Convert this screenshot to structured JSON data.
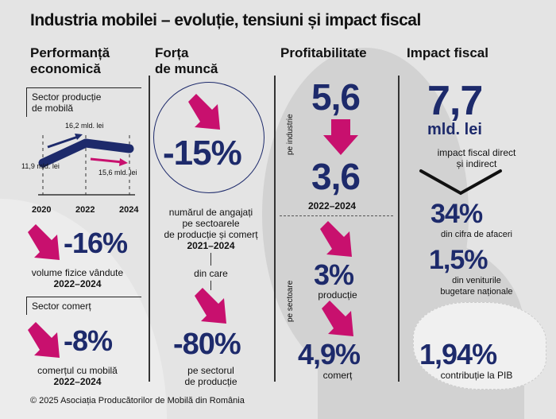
{
  "title": "Industria mobilei – evoluție, tensiuni și impact fiscal",
  "colors": {
    "navy": "#1d2a6b",
    "magenta": "#c8106e",
    "background": "#e4e4e4"
  },
  "col1": {
    "header_line1": "Performanță",
    "header_line2": "economică",
    "sector1_line1": "Sector producție",
    "sector1_line2": "de mobilă",
    "chart_data": {
      "type": "line",
      "categories": [
        "2020",
        "2022",
        "2024"
      ],
      "labels": [
        "11,9 mld. lei",
        "16,2 mld. lei",
        "15,6 mld. lei"
      ],
      "values": [
        11.9,
        16.2,
        15.6
      ]
    },
    "stat1_value": "-16%",
    "stat1_cap1": "volume fizice vândute",
    "stat1_cap2": "2022–2024",
    "sector2": "Sector comerț",
    "stat2_value": "-8%",
    "stat2_cap1": "comerțul cu mobilă",
    "stat2_cap2": "2022–2024"
  },
  "col2": {
    "header_line1": "Forța",
    "header_line2": "de muncă",
    "stat1_value": "-15%",
    "stat1_cap1": "numărul de angajați",
    "stat1_cap2": "pe sectoarele",
    "stat1_cap3": "de producție și comerț",
    "stat1_cap4": "2021–2024",
    "din_care": "din care",
    "stat2_value": "-80%",
    "stat2_cap1": "pe sectorul",
    "stat2_cap2": "de producție"
  },
  "col3": {
    "header": "Profitabilitate",
    "side1": "pe industrie",
    "from": "5,6",
    "to": "3,6",
    "period": "2022–2024",
    "side2": "pe sectoare",
    "v1": "3%",
    "v1_cap": "producție",
    "v2": "4,9%",
    "v2_cap": "comerț"
  },
  "col4": {
    "header": "Impact fiscal",
    "big": "7,7",
    "unit": "mld. lei",
    "cap1": "impact fiscal direct",
    "cap2": "și indirect",
    "s1": "34%",
    "s1_cap": "din cifra de afaceri",
    "s2": "1,5%",
    "s2_cap1": "din veniturile",
    "s2_cap2": "bugetare naționale",
    "s3": "1,94%",
    "s3_cap": "contribuție la PIB"
  },
  "footer": "© 2025 Asociația Producătorilor de Mobilă din România"
}
